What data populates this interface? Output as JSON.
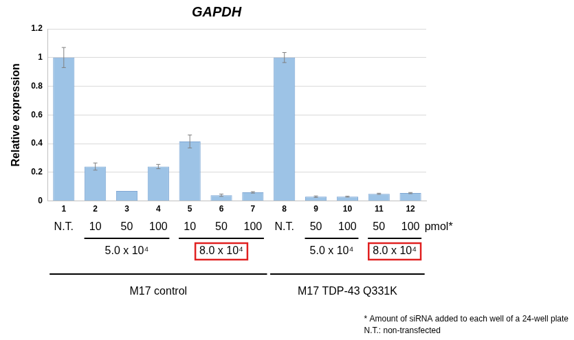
{
  "chart_data": {
    "type": "bar",
    "title": "GAPDH",
    "y_label": "Relative expression",
    "categories": [
      "1",
      "2",
      "3",
      "4",
      "5",
      "6",
      "7",
      "8",
      "9",
      "10",
      "11",
      "12"
    ],
    "values": [
      1.0,
      0.24,
      0.07,
      0.24,
      0.415,
      0.04,
      0.06,
      1.0,
      0.03,
      0.03,
      0.05,
      0.055
    ],
    "errors": [
      0.07,
      0.025,
      0.0,
      0.015,
      0.045,
      0.008,
      0.005,
      0.035,
      0.005,
      0.003,
      0.004,
      0.004
    ],
    "color": "#9dc3e6",
    "ylim": [
      0,
      1.2
    ],
    "yticks": [
      0,
      0.2,
      0.4,
      0.6,
      0.8,
      1,
      1.2
    ],
    "grid": true,
    "siRNA_amounts": [
      "N.T.",
      "10",
      "50",
      "100",
      "10",
      "50",
      "100",
      "N.T.",
      "50",
      "100",
      "50",
      "100"
    ],
    "siRNA_unit": "pmol*",
    "density_groups": [
      {
        "label": "5.0 x 10⁴",
        "first": "2",
        "last": "4"
      },
      {
        "label": "8.0 x 10⁴",
        "first": "5",
        "last": "7",
        "color": "#e02020"
      },
      {
        "label": "5.0 x 10⁴",
        "first": "9",
        "last": "10"
      },
      {
        "label": "8.0 x 10⁴",
        "first": "11",
        "last": "12",
        "color": "#e02020"
      }
    ],
    "cell_line_groups": [
      {
        "label": "M17 control",
        "first": "1",
        "last": "7"
      },
      {
        "label": "M17 TDP-43 Q331K",
        "first": "8",
        "last": "12"
      }
    ],
    "footnotes": [
      "* Amount of siRNA added to each well of a 24-well plate",
      "N.T.: non-transfected"
    ]
  }
}
